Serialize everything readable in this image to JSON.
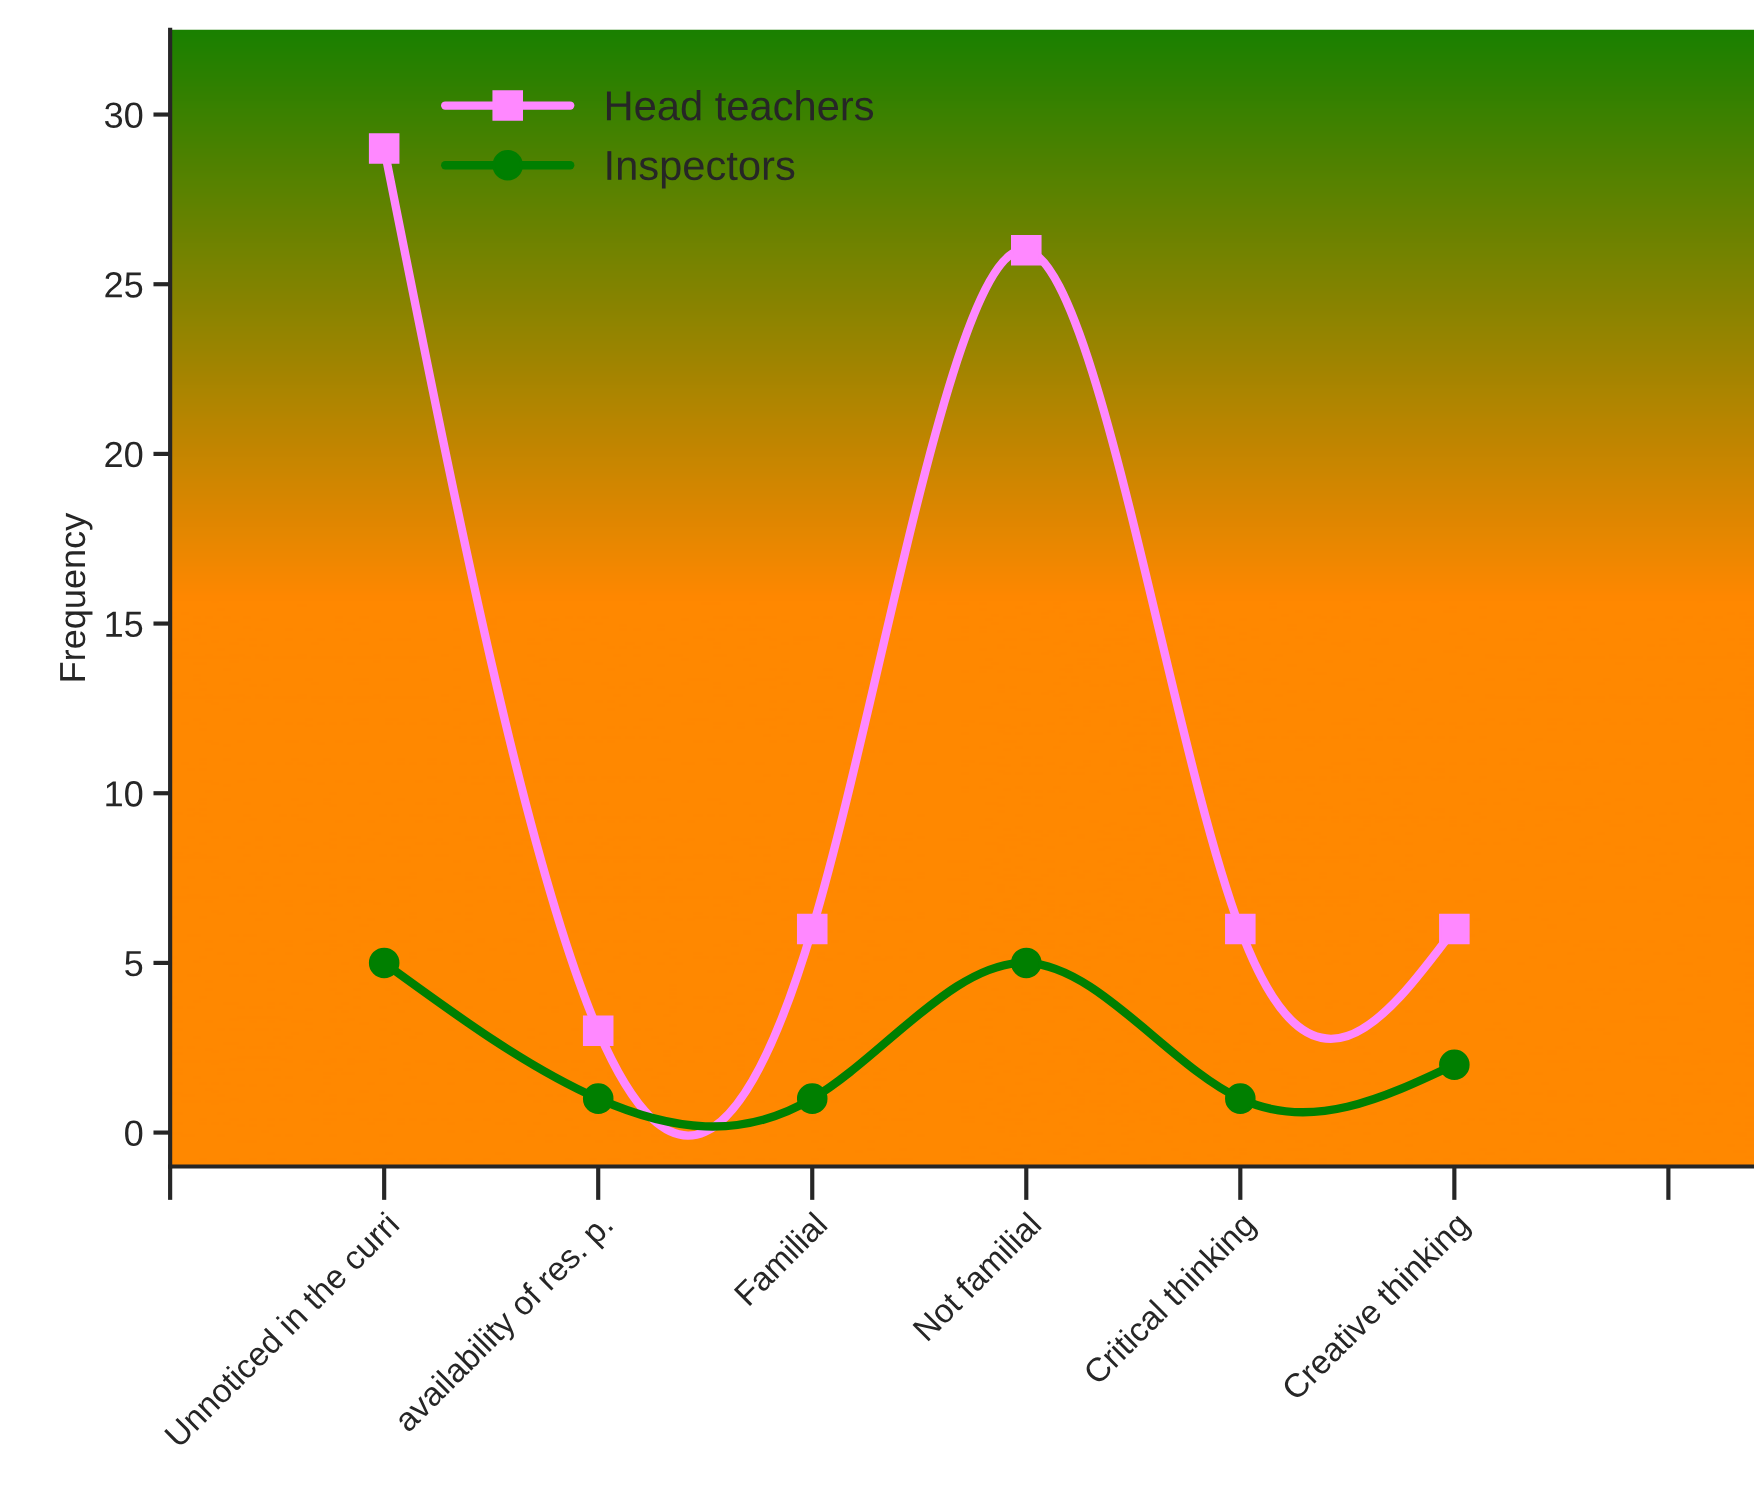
{
  "chart_data": {
    "type": "line",
    "ylabel": "Frequency",
    "categories": [
      "Unnoticed in the curri",
      "availability of res. p.",
      "Familial",
      "Not familial",
      "Critical thinking",
      "Creative thinking"
    ],
    "series": [
      {
        "name": "Head teachers",
        "color": "#ff88ff",
        "marker": "square",
        "values": [
          29,
          3,
          6,
          26,
          6,
          6
        ]
      },
      {
        "name": "Inspectors",
        "color": "#007f00",
        "marker": "circle",
        "values": [
          5,
          1,
          1,
          5,
          1,
          2
        ]
      }
    ],
    "ylim": [
      -1,
      32.5
    ],
    "yticks": [
      0,
      5,
      10,
      15,
      20,
      25,
      30
    ],
    "legend": "top left",
    "grid": false,
    "line_style": "solid"
  }
}
